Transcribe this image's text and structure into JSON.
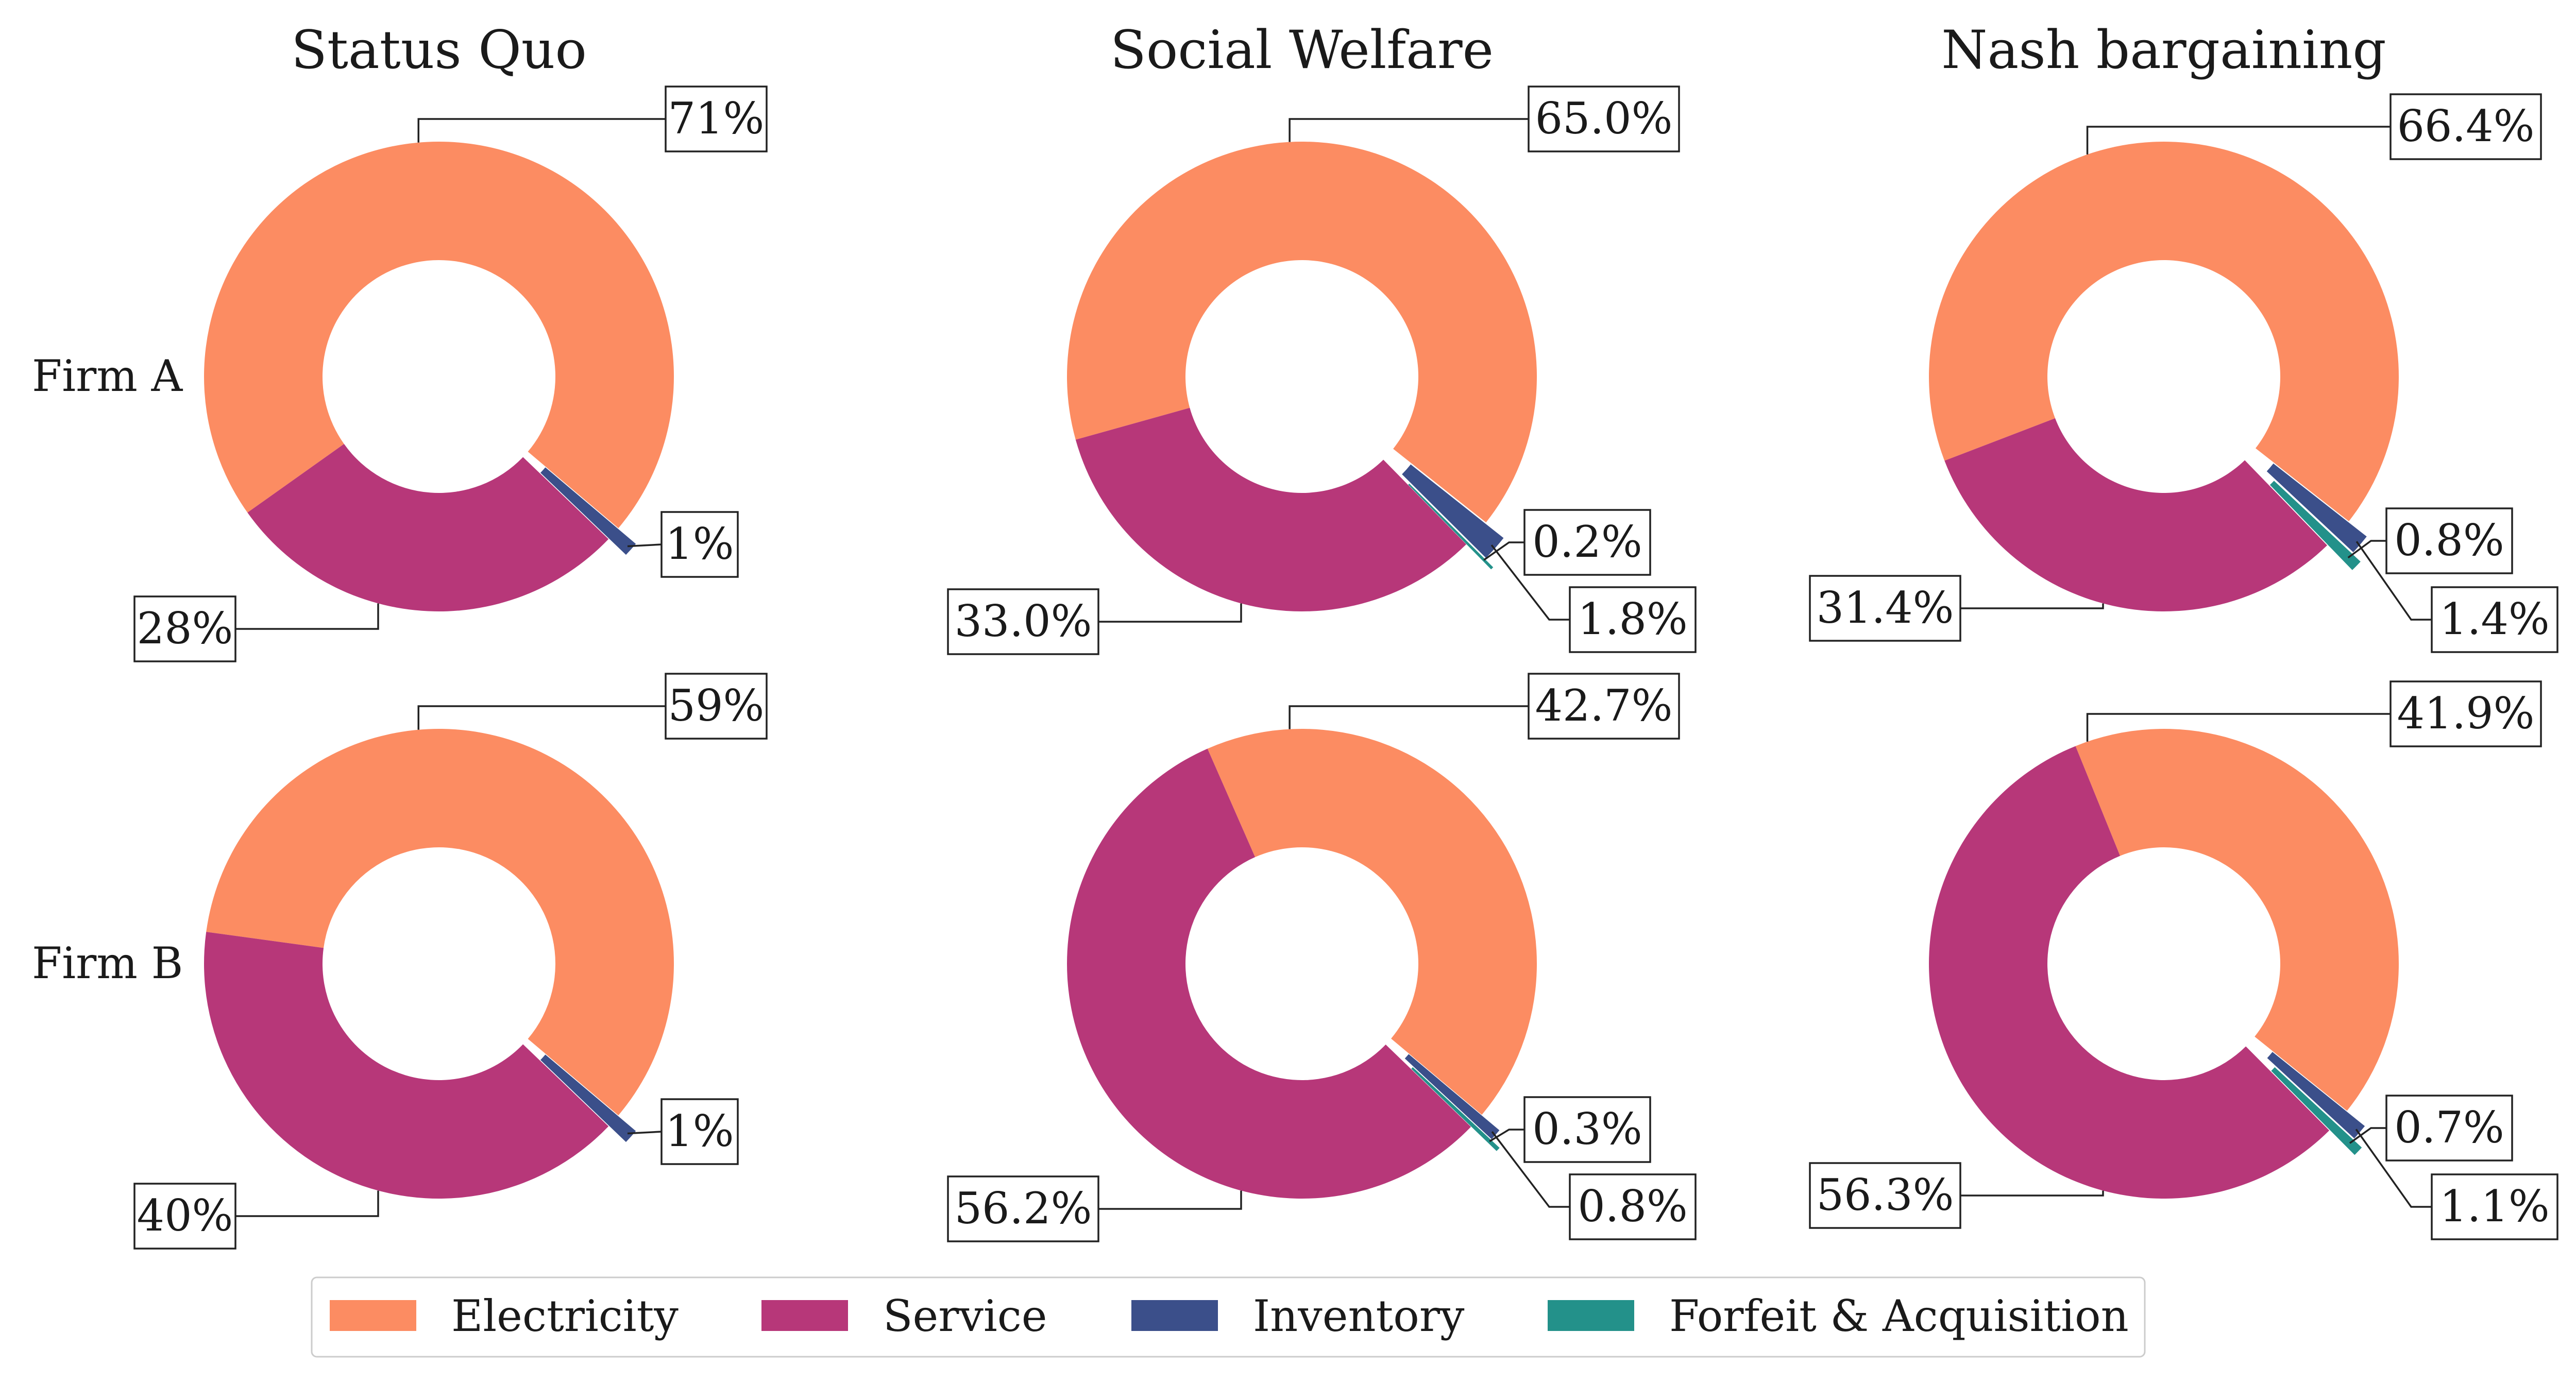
{
  "colors": {
    "Electricity": "#fc8c62",
    "Service": "#b73779",
    "Inventory": "#3b4f8a",
    "Forfeit & Acquisition": "#23918a",
    "label_box_border": "#222222",
    "leader_line": "#222222"
  },
  "chart_data": {
    "type": "pie",
    "subtype": "donut-grid",
    "columns": [
      "Status Quo",
      "Social Welfare",
      "Nash bargaining"
    ],
    "rows": [
      "Firm A",
      "Firm B"
    ],
    "categories": [
      "Electricity",
      "Service",
      "Inventory",
      "Forfeit & Acquisition"
    ],
    "legend": {
      "position": "bottom-center",
      "entries": [
        "Electricity",
        "Service",
        "Inventory",
        "Forfeit & Acquisition"
      ]
    },
    "panels": [
      {
        "column": "Status Quo",
        "row": "Firm A",
        "values": [
          71,
          28,
          1,
          0
        ],
        "labels": [
          "71%",
          "28%",
          "1%",
          null
        ]
      },
      {
        "column": "Social Welfare",
        "row": "Firm A",
        "values": [
          65.0,
          33.0,
          1.8,
          0.2
        ],
        "labels": [
          "65.0%",
          "33.0%",
          "1.8%",
          "0.2%"
        ]
      },
      {
        "column": "Nash bargaining",
        "row": "Firm A",
        "values": [
          66.4,
          31.4,
          1.4,
          0.8
        ],
        "labels": [
          "66.4%",
          "31.4%",
          "1.4%",
          "0.8%"
        ]
      },
      {
        "column": "Status Quo",
        "row": "Firm B",
        "values": [
          59,
          40,
          1,
          0
        ],
        "labels": [
          "59%",
          "40%",
          "1%",
          null
        ]
      },
      {
        "column": "Social Welfare",
        "row": "Firm B",
        "values": [
          42.7,
          56.2,
          0.8,
          0.3
        ],
        "labels": [
          "42.7%",
          "56.2%",
          "0.8%",
          "0.3%"
        ]
      },
      {
        "column": "Nash bargaining",
        "row": "Firm B",
        "values": [
          41.9,
          56.3,
          1.1,
          0.7
        ],
        "labels": [
          "41.9%",
          "56.3%",
          "1.1%",
          "0.7%"
        ]
      }
    ]
  }
}
